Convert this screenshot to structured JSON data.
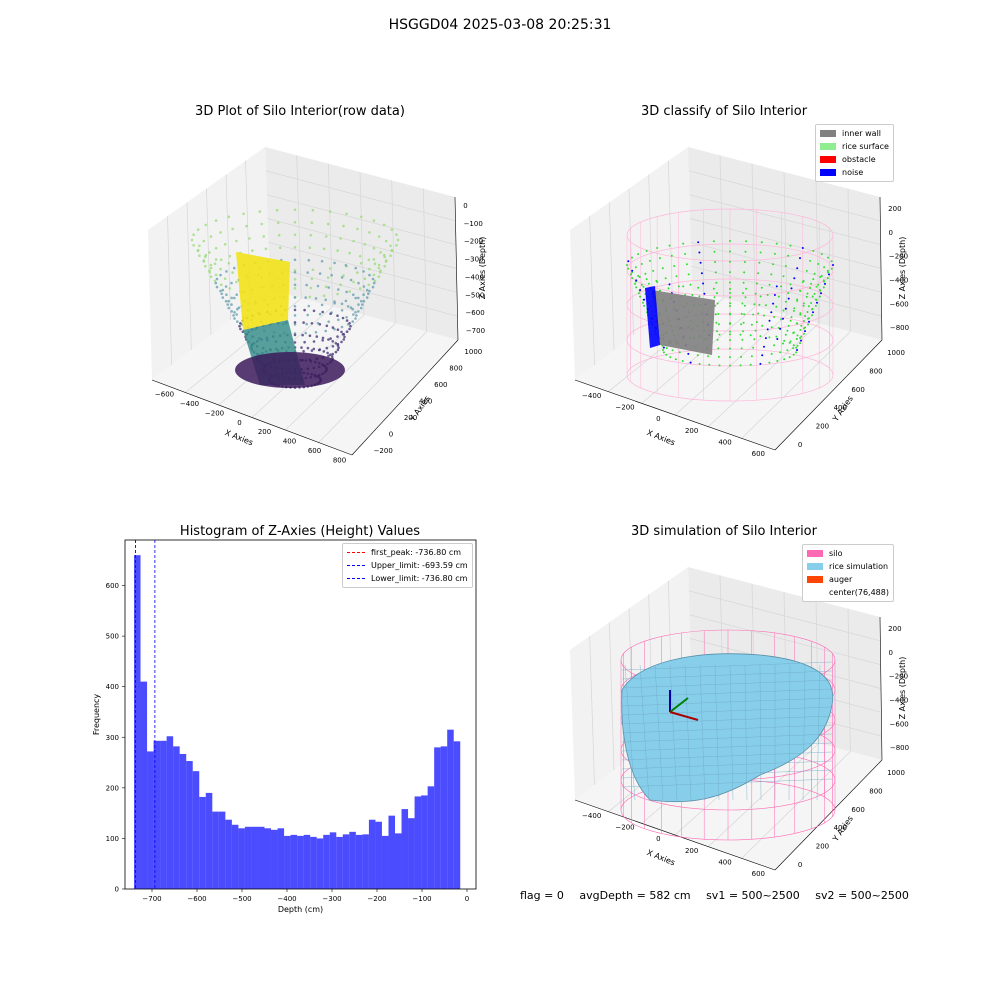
{
  "figure": {
    "title": "HSGGD04 2025-03-08 20:25:31"
  },
  "panel1": {
    "title": "3D Plot of Silo Interior(row data)",
    "xlabel": "X Axies",
    "ylabel": "Y Axies",
    "zlabel": "Z Axies (Depth)",
    "xticks": [
      "−600",
      "−400",
      "−200",
      "0",
      "200",
      "400",
      "600",
      "800"
    ],
    "yticks": [
      "−200",
      "0",
      "200",
      "400",
      "600",
      "800",
      "1000"
    ],
    "zticks": [
      "0",
      "−100",
      "−200",
      "−300",
      "−400",
      "−500",
      "−600",
      "−700"
    ]
  },
  "panel2": {
    "title": "3D classify of Silo Interior",
    "xlabel": "X Axies",
    "ylabel": "Y Axies",
    "zlabel": "Z Axies (Depth)",
    "xticks": [
      "−400",
      "−200",
      "0",
      "200",
      "400",
      "600"
    ],
    "yticks": [
      "0",
      "200",
      "400",
      "600",
      "800",
      "1000"
    ],
    "zticks": [
      "200",
      "0",
      "−200",
      "−400",
      "−600",
      "−800"
    ],
    "legend": [
      {
        "label": "inner wall",
        "color": "#808080"
      },
      {
        "label": "rice surface",
        "color": "#90ee90"
      },
      {
        "label": "obstacle",
        "color": "#ff0000"
      },
      {
        "label": "noise",
        "color": "#0000ff"
      }
    ]
  },
  "panel4": {
    "title": "3D simulation of Silo Interior",
    "xlabel": "X Axies",
    "ylabel": "Y Axies",
    "zlabel": "Z Axies (Depth)",
    "xticks": [
      "−400",
      "−200",
      "0",
      "200",
      "400",
      "600"
    ],
    "yticks": [
      "0",
      "200",
      "400",
      "600",
      "800",
      "1000"
    ],
    "zticks": [
      "200",
      "0",
      "−200",
      "−400",
      "−600",
      "−800"
    ],
    "legend": [
      {
        "label": "silo",
        "color": "#ff69b4"
      },
      {
        "label": "rice simulation",
        "color": "#87ceeb"
      },
      {
        "label": "auger",
        "color": "#ff4500"
      },
      {
        "label": "center(76,488)",
        "color": ""
      }
    ]
  },
  "status": {
    "flag": "flag = 0",
    "avg": "avgDepth = 582 cm",
    "sv1": "sv1 = 500~2500",
    "sv2": "sv2 = 500~2500"
  },
  "chart_data": {
    "type": "bar",
    "title": "Histogram of Z-Axies (Height) Values",
    "xlabel": "Depth (cm)",
    "ylabel": "Frequency",
    "xlim": [
      -760,
      20
    ],
    "ylim": [
      0,
      690
    ],
    "xticks": [
      -700,
      -600,
      -500,
      -400,
      -300,
      -200,
      -100,
      0
    ],
    "yticks": [
      0,
      100,
      200,
      300,
      400,
      500,
      600
    ],
    "bar_color": "#0000ff",
    "bin_start": -740,
    "bin_width": 14.5,
    "values": [
      660,
      410,
      272,
      293,
      293,
      302,
      282,
      267,
      253,
      233,
      182,
      190,
      153,
      153,
      137,
      127,
      120,
      123,
      123,
      123,
      120,
      117,
      120,
      105,
      107,
      105,
      107,
      103,
      100,
      107,
      112,
      103,
      108,
      113,
      107,
      108,
      137,
      133,
      105,
      145,
      110,
      158,
      140,
      183,
      185,
      203,
      280,
      282,
      315,
      292
    ],
    "lines": [
      {
        "name": "first_peak: -736.80 cm",
        "x": -736.8,
        "color": "#ff0000"
      },
      {
        "name": "Upper_limit: -693.59 cm",
        "x": -693.59,
        "color": "#0000ff"
      },
      {
        "name": "Lower_limit: -736.80 cm",
        "x": -736.8,
        "color": "#0000ff"
      }
    ],
    "legend_position": "upper right"
  }
}
